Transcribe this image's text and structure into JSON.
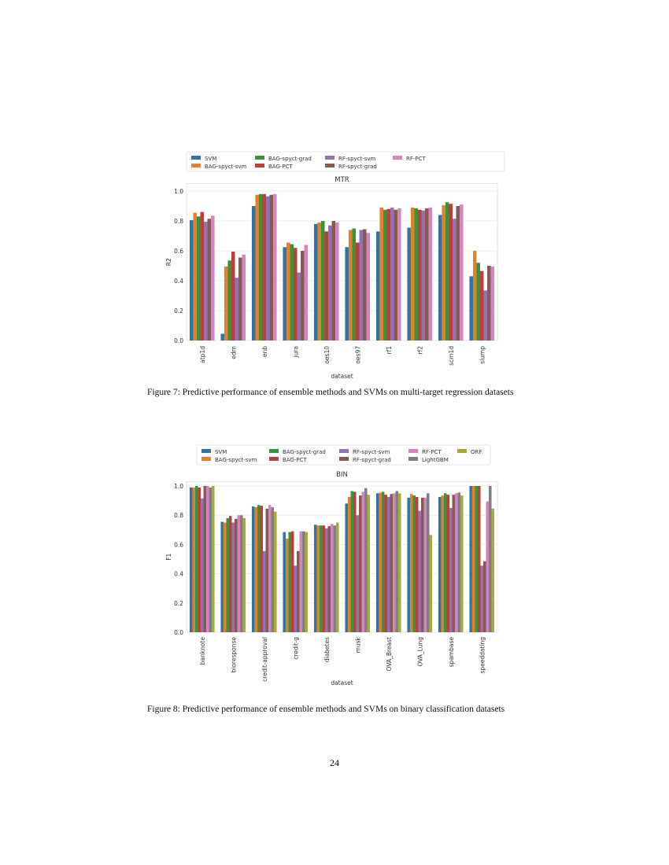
{
  "colors": {
    "SVM": "#3274a1",
    "BAG-spyct-svm": "#e1812c",
    "BAG-spyct-grad": "#3a923a",
    "BAG-PCT": "#c03d3e",
    "RF-spyct-svm": "#9372b2",
    "RF-spyct-grad": "#845b53",
    "RF-PCT": "#d684bd",
    "LightGBM": "#7f7f7f",
    "ORF": "#a9aa35"
  },
  "chart_data": [
    {
      "type": "bar",
      "title": "MTR",
      "xlabel": "dataset",
      "ylabel": "R2",
      "ylim": [
        0,
        1.05
      ],
      "yticks": [
        "0.0",
        "0.2",
        "0.4",
        "0.6",
        "0.8",
        "1.0"
      ],
      "grid": true,
      "legend": "top",
      "categories": [
        "atp1d",
        "edm",
        "enb",
        "jura",
        "oes10",
        "oes97",
        "rf1",
        "rf2",
        "scm1d",
        "slump"
      ],
      "series": [
        {
          "name": "SVM",
          "values": [
            0.805,
            0.045,
            0.9,
            0.625,
            0.78,
            0.625,
            0.73,
            0.755,
            0.84,
            0.43
          ]
        },
        {
          "name": "BAG-spyct-svm",
          "values": [
            0.855,
            0.495,
            0.975,
            0.655,
            0.79,
            0.74,
            0.89,
            0.89,
            0.905,
            0.6
          ]
        },
        {
          "name": "BAG-spyct-grad",
          "values": [
            0.83,
            0.535,
            0.98,
            0.645,
            0.8,
            0.75,
            0.875,
            0.885,
            0.925,
            0.52
          ]
        },
        {
          "name": "BAG-PCT",
          "values": [
            0.86,
            0.595,
            0.98,
            0.62,
            0.73,
            0.655,
            0.88,
            0.875,
            0.915,
            0.465
          ]
        },
        {
          "name": "RF-spyct-svm",
          "values": [
            0.795,
            0.42,
            0.965,
            0.455,
            0.77,
            0.74,
            0.89,
            0.87,
            0.815,
            0.335
          ]
        },
        {
          "name": "RF-spyct-grad",
          "values": [
            0.815,
            0.555,
            0.975,
            0.6,
            0.8,
            0.745,
            0.875,
            0.885,
            0.9,
            0.5
          ]
        },
        {
          "name": "RF-PCT",
          "values": [
            0.835,
            0.575,
            0.98,
            0.64,
            0.79,
            0.72,
            0.885,
            0.89,
            0.91,
            0.495
          ]
        }
      ]
    },
    {
      "type": "bar",
      "title": "BIN",
      "xlabel": "dataset",
      "ylabel": "F1",
      "ylim": [
        0,
        1.03
      ],
      "yticks": [
        "0.0",
        "0.2",
        "0.4",
        "0.6",
        "0.8",
        "1.0"
      ],
      "grid": true,
      "legend": "top",
      "categories": [
        "banknote",
        "bioresponse",
        "credit-approval",
        "credit-g",
        "diabetes",
        "musk",
        "OVA_Breast",
        "OVA_Lung",
        "spambase",
        "speeddating"
      ],
      "series": [
        {
          "name": "SVM",
          "values": [
            0.99,
            0.755,
            0.86,
            0.685,
            0.735,
            0.88,
            0.95,
            0.92,
            0.925,
            1.0
          ]
        },
        {
          "name": "BAG-spyct-svm",
          "values": [
            0.99,
            0.75,
            0.855,
            0.64,
            0.73,
            0.925,
            0.955,
            0.945,
            0.935,
            1.0
          ]
        },
        {
          "name": "BAG-spyct-grad",
          "values": [
            1.0,
            0.78,
            0.87,
            0.685,
            0.73,
            0.965,
            0.96,
            0.935,
            0.95,
            1.0
          ]
        },
        {
          "name": "BAG-PCT",
          "values": [
            0.99,
            0.795,
            0.865,
            0.69,
            0.73,
            0.96,
            0.94,
            0.925,
            0.94,
            1.0
          ]
        },
        {
          "name": "RF-spyct-svm",
          "values": [
            0.915,
            0.75,
            0.555,
            0.455,
            0.71,
            0.8,
            0.925,
            0.83,
            0.85,
            0.455
          ]
        },
        {
          "name": "RF-spyct-grad",
          "values": [
            1.0,
            0.775,
            0.845,
            0.555,
            0.725,
            0.935,
            0.945,
            0.92,
            0.94,
            0.485
          ]
        },
        {
          "name": "RF-PCT",
          "values": [
            1.0,
            0.8,
            0.87,
            0.69,
            0.74,
            0.96,
            0.95,
            0.92,
            0.95,
            0.895
          ]
        },
        {
          "name": "LightGBM",
          "values": [
            0.99,
            0.8,
            0.855,
            0.69,
            0.73,
            0.985,
            0.965,
            0.95,
            0.955,
            1.0
          ]
        },
        {
          "name": "ORF",
          "values": [
            1.0,
            0.78,
            0.825,
            0.685,
            0.75,
            0.94,
            0.95,
            0.665,
            0.935,
            0.845
          ]
        }
      ]
    }
  ],
  "captions": [
    "Figure 7: Predictive performance of ensemble methods and SVMs on multi-target regression datasets",
    "Figure 8: Predictive performance of ensemble methods and SVMs on binary classification datasets"
  ],
  "page_number": "24"
}
